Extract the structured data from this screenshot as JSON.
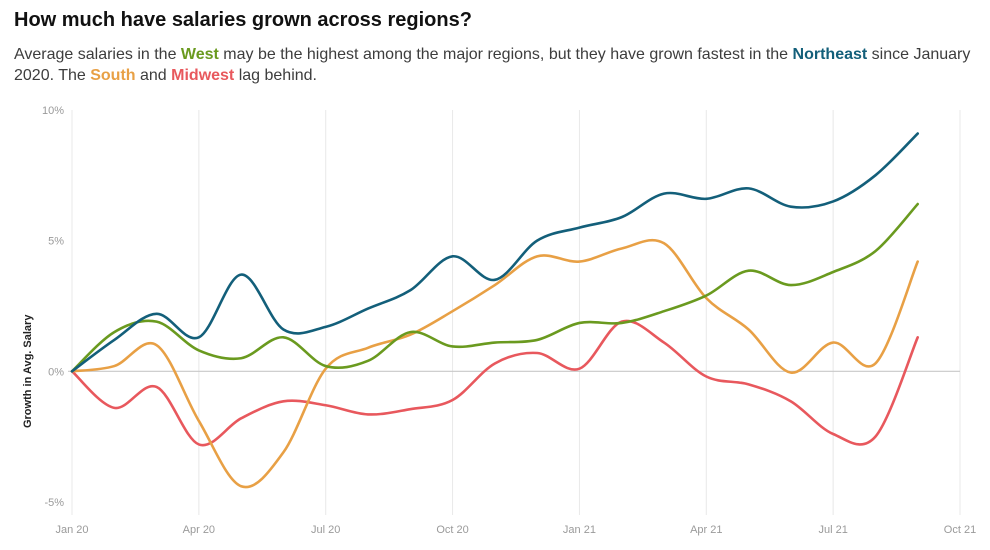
{
  "title": "How much have salaries grown across regions?",
  "subtitle": {
    "p1": "Average salaries in the ",
    "west": "West",
    "p2": " may be the highest among the major regions, but they have grown fastest in the ",
    "northeast": "Northeast",
    "p3": " since January 2020. The ",
    "south": "South",
    "p4": " and ",
    "midwest": "Midwest",
    "p5": " lag behind."
  },
  "colors": {
    "West": "#6a9a1f",
    "Northeast": "#135f7a",
    "South": "#e8a045",
    "Midwest": "#e8585d",
    "grid": "#e8e8e8",
    "zero": "#c8c8c8",
    "tick": "#9a9a9a"
  },
  "chart_data": {
    "type": "line",
    "title": "How much have salaries grown across regions?",
    "xlabel": "",
    "ylabel": "Growth in Avg. Salary",
    "ylim": [
      -5.5,
      10
    ],
    "xlim": [
      "2020-01",
      "2021-10"
    ],
    "grid": true,
    "legend": "none (series named in subtitle)",
    "y_ticks": [
      "10%",
      "5%",
      "0%",
      "-5%"
    ],
    "y_tick_values": [
      10,
      5,
      0,
      -5
    ],
    "x_ticks": [
      "Jan 20",
      "Apr 20",
      "Jul 20",
      "Oct 20",
      "Jan 21",
      "Apr 21",
      "Jul 21",
      "Oct 21"
    ],
    "x_tick_dates": [
      "2020-01",
      "2020-04",
      "2020-07",
      "2020-10",
      "2021-01",
      "2021-04",
      "2021-07",
      "2021-10"
    ],
    "x": [
      "2020-01",
      "2020-02",
      "2020-03",
      "2020-04",
      "2020-05",
      "2020-06",
      "2020-07",
      "2020-08",
      "2020-09",
      "2020-10",
      "2020-11",
      "2020-12",
      "2021-01",
      "2021-02",
      "2021-03",
      "2021-04",
      "2021-05",
      "2021-06",
      "2021-07",
      "2021-08",
      "2021-09"
    ],
    "series": [
      {
        "name": "Northeast",
        "values": [
          0,
          1.2,
          2.2,
          1.3,
          3.7,
          1.6,
          1.7,
          2.4,
          3.1,
          4.4,
          3.5,
          5.0,
          5.5,
          5.9,
          6.8,
          6.6,
          7.0,
          6.3,
          6.5,
          7.5,
          9.1
        ]
      },
      {
        "name": "West",
        "values": [
          0,
          1.5,
          1.9,
          0.8,
          0.5,
          1.3,
          0.2,
          0.4,
          1.5,
          0.95,
          1.1,
          1.2,
          1.85,
          1.85,
          2.3,
          2.9,
          3.85,
          3.3,
          3.8,
          4.6,
          6.4
        ]
      },
      {
        "name": "South",
        "values": [
          0,
          0.2,
          1.0,
          -1.9,
          -4.4,
          -3.1,
          0.1,
          0.9,
          1.4,
          2.3,
          3.3,
          4.4,
          4.2,
          4.7,
          4.9,
          2.8,
          1.6,
          -0.05,
          1.1,
          0.3,
          4.2
        ]
      },
      {
        "name": "Midwest",
        "values": [
          0,
          -1.4,
          -0.6,
          -2.8,
          -1.8,
          -1.15,
          -1.3,
          -1.65,
          -1.45,
          -1.1,
          0.3,
          0.7,
          0.1,
          1.9,
          1.1,
          -0.2,
          -0.5,
          -1.15,
          -2.4,
          -2.5,
          1.3
        ]
      }
    ]
  }
}
